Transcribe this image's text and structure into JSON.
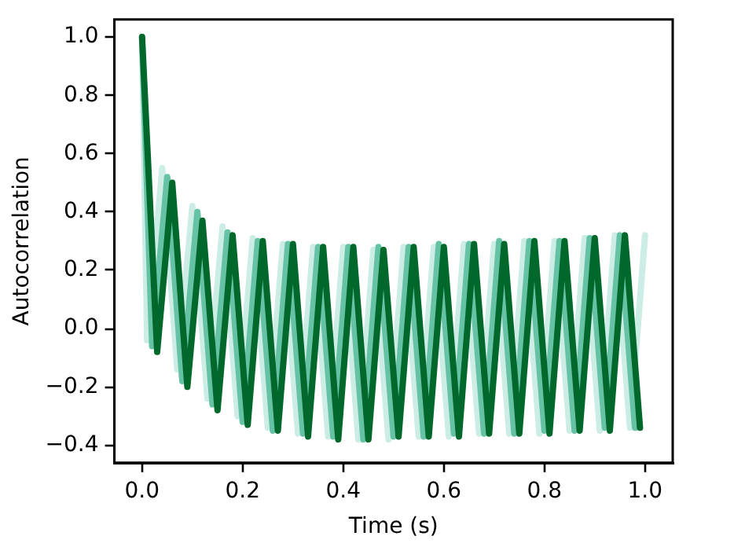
{
  "chart_data": {
    "type": "line",
    "xlabel": "Time (s)",
    "ylabel": "Autocorrelation",
    "xlim": [
      -0.055,
      1.055
    ],
    "ylim": [
      -0.46,
      1.06
    ],
    "xticks": [
      {
        "value": 0,
        "label": "0.0"
      },
      {
        "value": 0.2,
        "label": "0.2"
      },
      {
        "value": 0.4,
        "label": "0.4"
      },
      {
        "value": 0.6,
        "label": "0.6"
      },
      {
        "value": 0.8,
        "label": "0.8"
      },
      {
        "value": 1,
        "label": "1.0"
      }
    ],
    "yticks": [
      {
        "value": -0.4,
        "label": "−0.4"
      },
      {
        "value": -0.2,
        "label": "−0.2"
      },
      {
        "value": 0,
        "label": "0.0"
      },
      {
        "value": 0.2,
        "label": "0.2"
      },
      {
        "value": 0.4,
        "label": "0.4"
      },
      {
        "value": 0.6,
        "label": "0.6"
      },
      {
        "value": 0.8,
        "label": "0.8"
      },
      {
        "value": 1,
        "label": "1.0"
      }
    ],
    "grid": false,
    "legend": false,
    "marker": "none",
    "line_style": "solid",
    "series": [
      {
        "color": "#00682a",
        "x": [
          0,
          0.03,
          0.06,
          0.09,
          0.12,
          0.15,
          0.18,
          0.21,
          0.24,
          0.27,
          0.3,
          0.33,
          0.36,
          0.39,
          0.42,
          0.45,
          0.48,
          0.51,
          0.54,
          0.57,
          0.6,
          0.63,
          0.66,
          0.69,
          0.72,
          0.75,
          0.78,
          0.81,
          0.84,
          0.87,
          0.9,
          0.93,
          0.96,
          0.99
        ],
        "values": [
          1.0,
          -0.08,
          0.5,
          -0.2,
          0.37,
          -0.28,
          0.32,
          -0.33,
          0.3,
          -0.35,
          0.29,
          -0.37,
          0.28,
          -0.38,
          0.28,
          -0.38,
          0.27,
          -0.37,
          0.28,
          -0.37,
          0.28,
          -0.37,
          0.29,
          -0.36,
          0.29,
          -0.36,
          0.3,
          -0.36,
          0.3,
          -0.35,
          0.31,
          -0.35,
          0.32,
          -0.34
        ]
      },
      {
        "color": "#66c2a4",
        "x": [
          0,
          0.02,
          0.05,
          0.08,
          0.11,
          0.14,
          0.17,
          0.2,
          0.23,
          0.26,
          0.29,
          0.32,
          0.35,
          0.38,
          0.41,
          0.44,
          0.47,
          0.5,
          0.53,
          0.56,
          0.59,
          0.62,
          0.65,
          0.68,
          0.71,
          0.74,
          0.77,
          0.8,
          0.83,
          0.86,
          0.89,
          0.92,
          0.95,
          0.98
        ],
        "values": [
          1.0,
          -0.06,
          0.52,
          -0.18,
          0.4,
          -0.26,
          0.33,
          -0.32,
          0.3,
          -0.35,
          0.29,
          -0.36,
          0.28,
          -0.37,
          0.28,
          -0.38,
          0.28,
          -0.37,
          0.28,
          -0.37,
          0.29,
          -0.36,
          0.29,
          -0.36,
          0.3,
          -0.36,
          0.3,
          -0.35,
          0.3,
          -0.35,
          0.31,
          -0.34,
          0.32,
          -0.34
        ]
      },
      {
        "color": "#ccece6",
        "x": [
          0,
          0.01,
          0.04,
          0.07,
          0.1,
          0.13,
          0.16,
          0.19,
          0.22,
          0.25,
          0.28,
          0.31,
          0.34,
          0.37,
          0.4,
          0.43,
          0.46,
          0.49,
          0.52,
          0.55,
          0.58,
          0.61,
          0.64,
          0.67,
          0.7,
          0.73,
          0.76,
          0.79,
          0.82,
          0.85,
          0.88,
          0.91,
          0.94,
          0.97,
          1.0
        ],
        "values": [
          1.0,
          -0.04,
          0.55,
          -0.14,
          0.42,
          -0.24,
          0.35,
          -0.3,
          0.31,
          -0.34,
          0.29,
          -0.36,
          0.28,
          -0.37,
          0.28,
          -0.38,
          0.27,
          -0.38,
          0.28,
          -0.37,
          0.28,
          -0.37,
          0.29,
          -0.36,
          0.29,
          -0.36,
          0.3,
          -0.36,
          0.3,
          -0.35,
          0.31,
          -0.35,
          0.32,
          -0.34,
          0.32
        ]
      }
    ]
  }
}
